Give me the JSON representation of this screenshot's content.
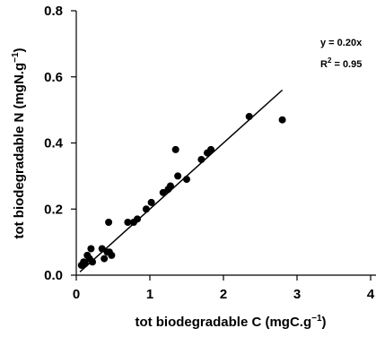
{
  "chart_data": {
    "type": "scatter",
    "title": "",
    "xlabel": "tot biodegradable C (mgC.g",
    "xlabel_sup": "−1",
    "xlabel_end": ")",
    "ylabel": "tot biodegradable N (mgN.g",
    "ylabel_sup": "−1",
    "ylabel_end": ")",
    "xlim": [
      0,
      4
    ],
    "ylim": [
      0,
      0.8
    ],
    "x_ticks": [
      "0",
      "1",
      "2",
      "3",
      "4"
    ],
    "y_ticks": [
      "0.0",
      "0.2",
      "0.4",
      "0.6",
      "0.8"
    ],
    "grid": false,
    "legend": "none",
    "annotations": {
      "equation": "y = 0.20x",
      "r2_prefix": "R",
      "r2_sup": "2",
      "r2_value": " = 0.95"
    },
    "trendline": {
      "slope": 0.2,
      "intercept": 0.0,
      "x_range": [
        0.05,
        2.8
      ]
    },
    "x": [
      0.07,
      0.1,
      0.12,
      0.15,
      0.18,
      0.2,
      0.22,
      0.35,
      0.38,
      0.42,
      0.44,
      0.48,
      0.45,
      0.7,
      0.78,
      0.83,
      0.95,
      1.02,
      1.18,
      1.25,
      1.28,
      1.35,
      1.38,
      1.5,
      1.7,
      1.78,
      1.83,
      2.35,
      2.8
    ],
    "y": [
      0.03,
      0.04,
      0.035,
      0.06,
      0.05,
      0.08,
      0.04,
      0.08,
      0.05,
      0.07,
      0.16,
      0.06,
      0.07,
      0.16,
      0.16,
      0.17,
      0.2,
      0.22,
      0.25,
      0.26,
      0.27,
      0.38,
      0.3,
      0.29,
      0.35,
      0.37,
      0.38,
      0.48,
      0.47
    ]
  }
}
